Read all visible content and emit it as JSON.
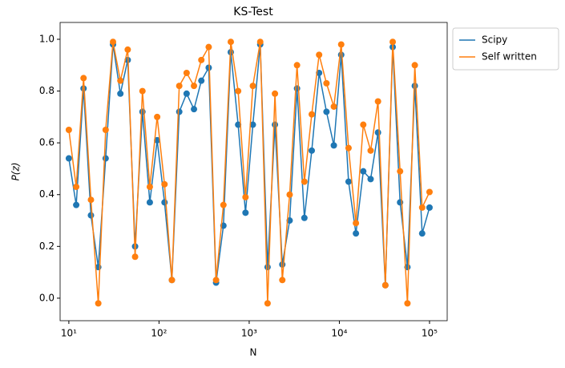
{
  "chart_data": {
    "type": "line",
    "title": "KS-Test",
    "xlabel": "N",
    "ylabel": "P(z)",
    "xscale": "log",
    "markers": true,
    "legend": "outside-right",
    "x": [
      10,
      12.07,
      14.56,
      17.58,
      21.21,
      25.6,
      30.89,
      37.28,
      44.99,
      54.29,
      65.51,
      79.06,
      95.41,
      115.1,
      138.9,
      167.7,
      202.4,
      244.2,
      294.7,
      355.7,
      429.2,
      518,
      625.1,
      754.3,
      910.3,
      1098.5,
      1325.7,
      1599.9,
      1930.7,
      2330,
      2811.8,
      3393.2,
      4094.9,
      4941.7,
      5963.6,
      7196.9,
      8685.1,
      10481,
      12649,
      15264,
      18421,
      22230,
      26827,
      32375,
      39069,
      47149,
      56899,
      68665,
      82864,
      100000
    ],
    "series": [
      {
        "name": "Scipy",
        "color": "#1f77b4",
        "values": [
          0.54,
          0.36,
          0.81,
          0.32,
          0.12,
          0.54,
          0.98,
          0.79,
          0.92,
          0.2,
          0.72,
          0.37,
          0.61,
          0.37,
          0.07,
          0.72,
          0.79,
          0.73,
          0.84,
          0.89,
          0.06,
          0.28,
          0.95,
          0.67,
          0.33,
          0.67,
          0.98,
          0.12,
          0.67,
          0.13,
          0.3,
          0.81,
          0.31,
          0.57,
          0.87,
          0.72,
          0.59,
          0.94,
          0.45,
          0.25,
          0.49,
          0.46,
          0.64,
          0.05,
          0.97,
          0.37,
          0.12,
          0.82,
          0.25,
          0.35
        ]
      },
      {
        "name": "Self written",
        "color": "#ff7f0e",
        "values": [
          0.65,
          0.43,
          0.85,
          0.38,
          -0.02,
          0.65,
          0.99,
          0.84,
          0.96,
          0.16,
          0.8,
          0.43,
          0.7,
          0.44,
          0.07,
          0.82,
          0.87,
          0.82,
          0.92,
          0.97,
          0.07,
          0.36,
          0.99,
          0.8,
          0.39,
          0.82,
          0.99,
          -0.02,
          0.79,
          0.07,
          0.4,
          0.9,
          0.45,
          0.71,
          0.94,
          0.83,
          0.74,
          0.98,
          0.58,
          0.29,
          0.67,
          0.57,
          0.76,
          0.05,
          0.99,
          0.49,
          -0.02,
          0.9,
          0.35,
          0.41
        ]
      }
    ],
    "xlim": [
      8,
      157000
    ],
    "ylim": [
      -0.087,
      1.065
    ],
    "xticks": [
      {
        "value": 10,
        "label": "10¹"
      },
      {
        "value": 100,
        "label": "10²"
      },
      {
        "value": 1000,
        "label": "10³"
      },
      {
        "value": 10000,
        "label": "10⁴"
      },
      {
        "value": 100000,
        "label": "10⁵"
      }
    ],
    "yticks": [
      {
        "value": 0,
        "label": "0.0"
      },
      0.2,
      0.4,
      0.6,
      0.8,
      {
        "value": 1,
        "label": "1.0"
      }
    ]
  }
}
